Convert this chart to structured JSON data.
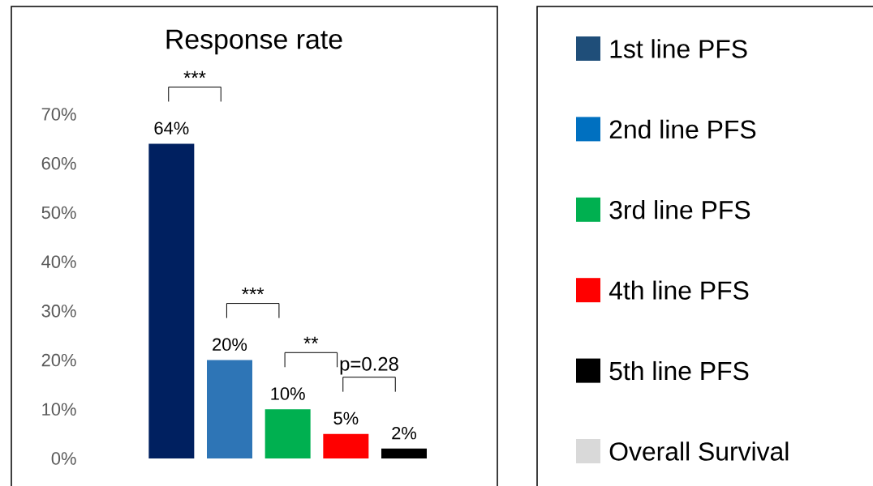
{
  "chart_data": [
    {
      "type": "bar",
      "title": "Response rate",
      "categories": [
        null,
        null,
        null,
        null,
        null
      ],
      "values": [
        64,
        20,
        10,
        5,
        2
      ],
      "colors": [
        "#002060",
        "#2e75b6",
        "#00b050",
        "#ff0000",
        "#000000"
      ],
      "value_labels": [
        "64%",
        "20%",
        "10%",
        "5%",
        "2%"
      ],
      "ylim": [
        0,
        70
      ],
      "yticks": [
        {
          "value": 0,
          "label": "0%"
        },
        {
          "value": 10,
          "label": "10%"
        },
        {
          "value": 20,
          "label": "20%"
        },
        {
          "value": 30,
          "label": "30%"
        },
        {
          "value": 40,
          "label": "40%"
        },
        {
          "value": 50,
          "label": "50%"
        },
        {
          "value": 60,
          "label": "60%"
        },
        {
          "value": 70,
          "label": "70%"
        }
      ],
      "annotations": [
        "***",
        "***",
        "**",
        "p=0.28"
      ]
    },
    {
      "type": "other",
      "annotations": [
        "1st line PFS",
        "2nd line PFS",
        "3rd line PFS",
        "4th line PFS",
        "5th line PFS",
        "Overall Survival"
      ],
      "colors": [
        "#1f4e79",
        "#0070c0",
        "#00b050",
        "#ff0000",
        "#000000",
        "#d9d9d9"
      ]
    }
  ]
}
